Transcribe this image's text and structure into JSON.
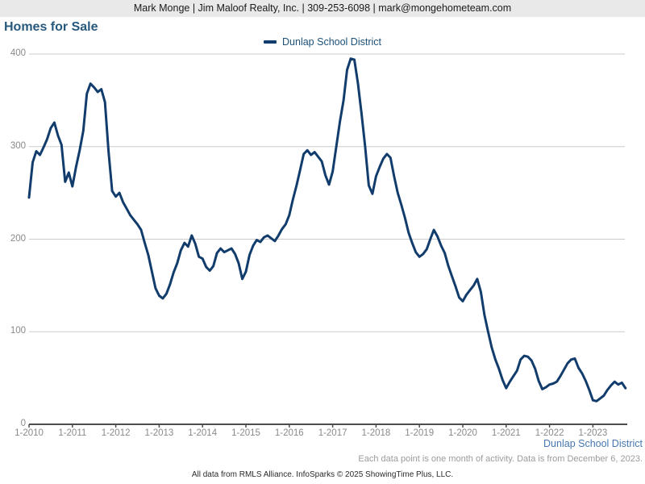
{
  "banner": {
    "text": "Mark Monge | Jim Maloof Realty, Inc. | 309-253-6098 | mark@mongehometeam.com"
  },
  "title": "Homes for Sale",
  "legend": {
    "label": "Dunlap School District"
  },
  "footer": {
    "series_label": "Dunlap School District",
    "note": "Each data point is one month of activity. Data is from December 6, 2023.",
    "attribution": "All data from RMLS Alliance. InfoSparks © 2025 ShowingTime Plus, LLC."
  },
  "colors": {
    "line": "#113c6c",
    "title": "#27597d",
    "legend_text": "#1c5178",
    "banner_bg": "#e9e9e9",
    "axis_text": "#8a8a8a",
    "gridline": "#cbcbcb",
    "axis_line": "#4d4d4d",
    "footer_district": "#4677b2",
    "footer_note": "#9b9b9b"
  },
  "chart_data": {
    "type": "line",
    "title": "Homes for Sale",
    "frequency": "monthly",
    "x_start": "1-2010",
    "x_end": "10-2023",
    "ylim": [
      0,
      400
    ],
    "grid": "horizontal",
    "legend_position": "top-center",
    "y_ticks": [
      400,
      300,
      200,
      100,
      0
    ],
    "x_ticks": [
      "1-2010",
      "1-2011",
      "1-2012",
      "1-2013",
      "1-2014",
      "1-2015",
      "1-2016",
      "1-2017",
      "1-2018",
      "1-2019",
      "1-2020",
      "1-2021",
      "1-2022",
      "1-2023"
    ],
    "series": [
      {
        "name": "Dunlap School District",
        "values": [
          245,
          283,
          295,
          291,
          299,
          308,
          320,
          326,
          312,
          302,
          262,
          272,
          257,
          278,
          296,
          317,
          357,
          368,
          364,
          359,
          362,
          348,
          295,
          252,
          246,
          250,
          240,
          233,
          226,
          221,
          216,
          210,
          196,
          183,
          165,
          147,
          139,
          136,
          141,
          151,
          164,
          174,
          188,
          196,
          192,
          204,
          195,
          181,
          179,
          170,
          166,
          171,
          185,
          190,
          186,
          188,
          190,
          184,
          174,
          157,
          165,
          183,
          193,
          199,
          197,
          202,
          204,
          201,
          198,
          204,
          211,
          216,
          226,
          243,
          258,
          275,
          292,
          296,
          291,
          294,
          289,
          284,
          269,
          259,
          273,
          300,
          327,
          350,
          383,
          395,
          394,
          368,
          335,
          300,
          258,
          249,
          268,
          278,
          287,
          292,
          288,
          268,
          250,
          237,
          223,
          207,
          196,
          186,
          181,
          184,
          189,
          200,
          210,
          203,
          193,
          185,
          171,
          160,
          149,
          137,
          133,
          140,
          145,
          150,
          157,
          143,
          118,
          100,
          83,
          70,
          60,
          48,
          39,
          46,
          52,
          58,
          70,
          74,
          73,
          69,
          60,
          47,
          38,
          40,
          43,
          44,
          46,
          52,
          59,
          66,
          70,
          71,
          61,
          55,
          47,
          37,
          26,
          25,
          28,
          31,
          37,
          42,
          46,
          43,
          45,
          39
        ]
      }
    ]
  }
}
